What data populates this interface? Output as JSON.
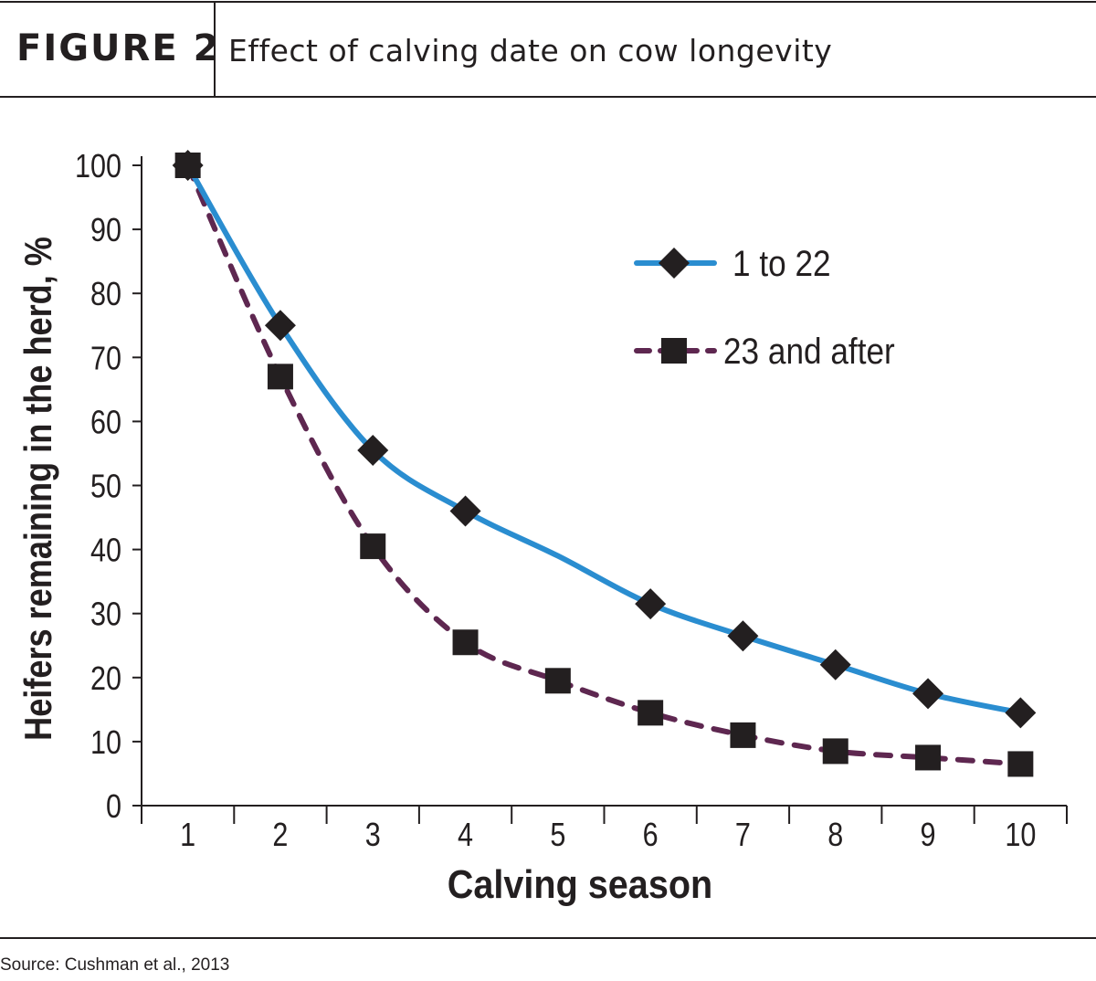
{
  "header": {
    "figure_label": "FIGURE 2",
    "figure_title": "Effect of calving date on cow longevity"
  },
  "footer": {
    "source": "Source: Cushman et al., 2013"
  },
  "chart_data": {
    "type": "line",
    "title": "Effect of calving date on cow longevity",
    "xlabel": "Calving season",
    "ylabel": "Heifers remaining in the herd, %",
    "x": [
      1,
      2,
      3,
      4,
      5,
      6,
      7,
      8,
      9,
      10
    ],
    "xlim": [
      0.5,
      10.5
    ],
    "ylim": [
      0,
      100
    ],
    "yticks": [
      0,
      10,
      20,
      30,
      40,
      50,
      60,
      70,
      80,
      90,
      100
    ],
    "grid": false,
    "legend_position": "top-right",
    "series": [
      {
        "name": "1 to 22",
        "values": [
          100,
          75,
          55.5,
          46,
          null,
          31.5,
          26.5,
          22,
          17.5,
          14.5
        ],
        "line_values": [
          100,
          75,
          55.5,
          46,
          39,
          31.5,
          26.5,
          22,
          17.5,
          14.5
        ],
        "color": "#2a8dd0",
        "line_style": "solid",
        "marker": "diamond"
      },
      {
        "name": "23 and after",
        "values": [
          100,
          67,
          40.5,
          25.5,
          19.5,
          14.5,
          11,
          8.5,
          7.5,
          6.5
        ],
        "line_values": [
          100,
          67,
          40.5,
          25.5,
          19.5,
          14.5,
          11,
          8.5,
          7.5,
          6.5
        ],
        "color": "#5e2750",
        "line_style": "dashed",
        "marker": "square"
      }
    ],
    "marker_color": "#231f20",
    "axis_color": "#231f20"
  }
}
